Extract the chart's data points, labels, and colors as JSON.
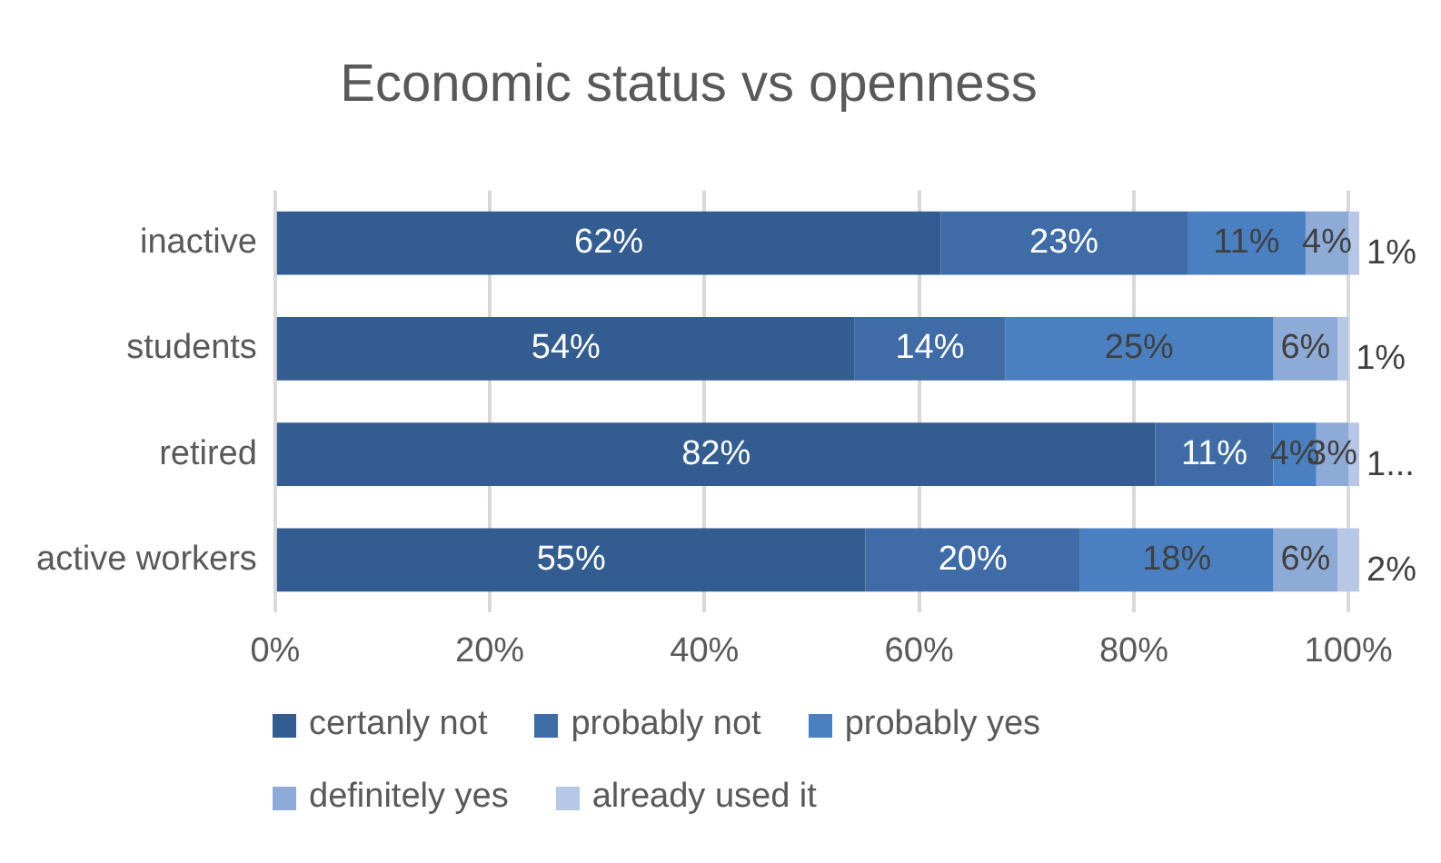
{
  "chart_data": {
    "type": "bar",
    "orientation": "horizontal",
    "stacked": true,
    "title": "Economic status vs openness",
    "categories": [
      "inactive",
      "students",
      "retired",
      "active workers"
    ],
    "series": [
      {
        "name": "certanly not",
        "color": "#335c91",
        "values": [
          62,
          54,
          82,
          55
        ],
        "value_labels": [
          "62%",
          "54%",
          "82%",
          "55%"
        ]
      },
      {
        "name": "probably not",
        "color": "#3f6ca6",
        "values": [
          23,
          14,
          11,
          20
        ],
        "value_labels": [
          "23%",
          "14%",
          "11%",
          "20%"
        ]
      },
      {
        "name": "probably yes",
        "color": "#4a80c1",
        "values": [
          11,
          25,
          4,
          18
        ],
        "value_labels": [
          "11%",
          "25%",
          "4%",
          "18%"
        ]
      },
      {
        "name": "definitely yes",
        "color": "#8eaad6",
        "values": [
          4,
          6,
          3,
          6
        ],
        "value_labels": [
          "4%",
          "6%",
          "3%",
          "6%"
        ]
      },
      {
        "name": "already used it",
        "color": "#b7c7e6",
        "values": [
          1,
          1,
          1,
          2
        ],
        "value_labels": [
          "1%",
          "1%",
          "1...",
          "2%"
        ]
      }
    ],
    "xlim": [
      0,
      101
    ],
    "xticks": [
      {
        "value": 0,
        "label": "0%"
      },
      {
        "value": 20,
        "label": "20%"
      },
      {
        "value": 40,
        "label": "40%"
      },
      {
        "value": 60,
        "label": "60%"
      },
      {
        "value": 80,
        "label": "80%"
      },
      {
        "value": 100,
        "label": "100%"
      }
    ],
    "grid": "x",
    "legend": "bottom"
  }
}
